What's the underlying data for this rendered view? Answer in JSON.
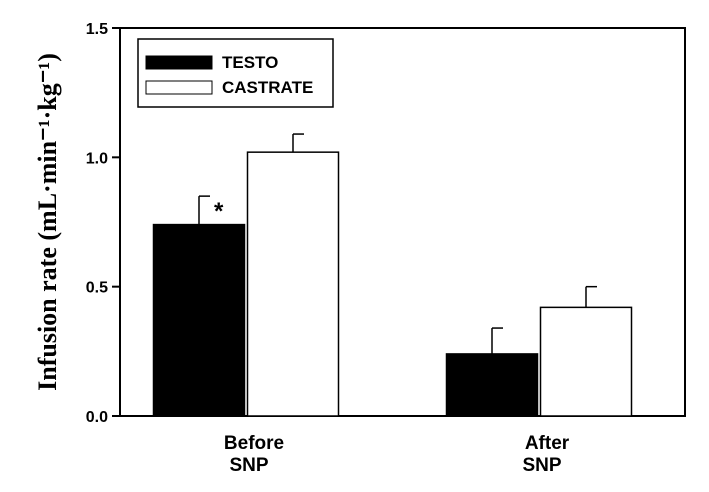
{
  "chart_data": {
    "type": "bar",
    "categories": [
      {
        "line1": "Before",
        "line2": "SNP"
      },
      {
        "line1": "After",
        "line2": "SNP"
      }
    ],
    "series": [
      {
        "name": "TESTO",
        "color": "#000000",
        "values": [
          0.74,
          0.24
        ],
        "errors": [
          0.11,
          0.1
        ]
      },
      {
        "name": "CASTRATE",
        "color": "#ffffff",
        "values": [
          1.02,
          0.42
        ],
        "errors": [
          0.07,
          0.08
        ]
      }
    ],
    "ylim": [
      0.0,
      1.5
    ],
    "yticks": [
      0.0,
      0.5,
      1.0,
      1.5
    ],
    "ytick_labels": [
      "0.0",
      "0.5",
      "1.0",
      "1.5"
    ],
    "ylabel": "Infusion rate (mL·min⁻¹·kg⁻¹)",
    "xlabel": "",
    "legend_position": "top-left",
    "grid": false,
    "annotations": [
      {
        "text": "*",
        "category": 0,
        "series": 0
      }
    ]
  }
}
